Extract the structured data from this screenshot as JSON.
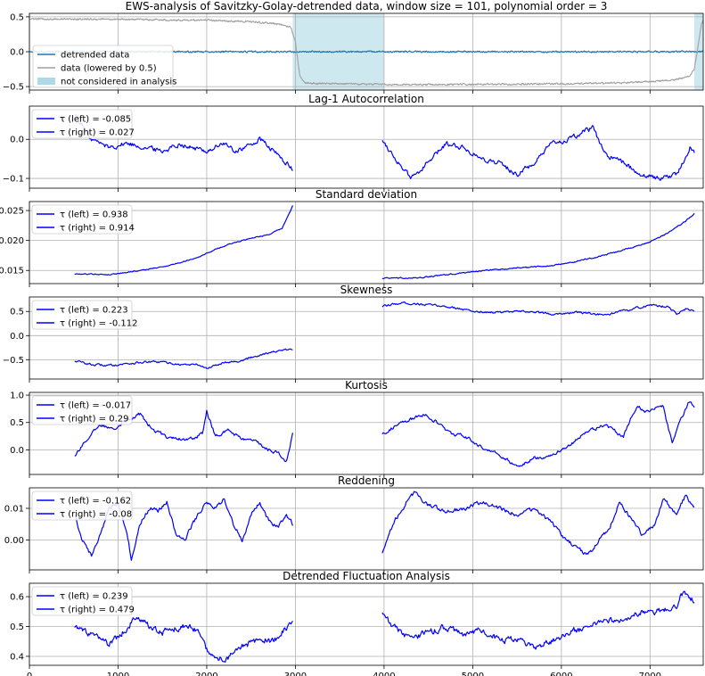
{
  "figure": {
    "title": "EWS-analysis of Savitzky-Golay-detrended data, window size = 101, polynomial order = 3"
  },
  "colors": {
    "detrended": "#1f77b4",
    "data": "#a0a0a0",
    "shade": "#add8e6",
    "indicator": "#0000ff",
    "grid": "#b0b0b0"
  },
  "chart_data": [
    {
      "type": "line",
      "title": "EWS-analysis of Savitzky-Golay-detrended data, window size = 101, polynomial order = 3",
      "xlim": [
        0,
        7600
      ],
      "ylim": [
        -0.55,
        0.55
      ],
      "yticks": [
        -0.5,
        0.0,
        0.5
      ],
      "ytick_labels": [
        "−0.5",
        "0.0",
        "0.5"
      ],
      "grid": true,
      "legend": "center-left",
      "legend_entries": [
        "detrended data",
        "data (lowered by 0.5)",
        "not considered in analysis"
      ],
      "shaded_regions": [
        [
          2970,
          4000
        ],
        [
          7500,
          7600
        ]
      ],
      "series": [
        {
          "name": "detrended data",
          "x": [
            0,
            2970,
            3050,
            7600
          ],
          "y": [
            0.0,
            0.0,
            0.0,
            0.0
          ],
          "noise": 0.02
        },
        {
          "name": "data (lowered by 0.5)",
          "x": [
            0,
            1000,
            2000,
            2500,
            2800,
            2950,
            3000,
            3050,
            3100,
            4000,
            5000,
            6000,
            6500,
            7000,
            7300,
            7450,
            7500,
            7550,
            7580,
            7600
          ],
          "y": [
            0.47,
            0.465,
            0.45,
            0.43,
            0.4,
            0.35,
            0.15,
            -0.35,
            -0.45,
            -0.47,
            -0.47,
            -0.46,
            -0.45,
            -0.43,
            -0.4,
            -0.35,
            -0.25,
            0.15,
            0.4,
            0.45
          ],
          "noise": 0.02
        }
      ]
    },
    {
      "type": "line",
      "title": "Lag-1 Autocorrelation",
      "xlim": [
        0,
        7600
      ],
      "ylim": [
        -0.125,
        0.085
      ],
      "yticks": [
        -0.1,
        0.0
      ],
      "ytick_labels": [
        "−0.1",
        "0.0"
      ],
      "grid": true,
      "legend": "top-left",
      "legend_entries": [
        "τ (left) = -0.085",
        "τ (right) = 0.027"
      ],
      "series": [
        {
          "name": "τ (left) = -0.085",
          "x": [
            510,
            700,
            900,
            1100,
            1300,
            1500,
            1700,
            1800,
            2000,
            2200,
            2300,
            2450,
            2600,
            2750,
            2800,
            2900,
            2970
          ],
          "y": [
            0.065,
            0.0,
            -0.02,
            -0.01,
            -0.02,
            -0.03,
            -0.01,
            -0.02,
            -0.03,
            -0.01,
            -0.03,
            -0.02,
            0.0,
            -0.03,
            -0.04,
            -0.06,
            -0.08
          ],
          "noise": 0.012
        },
        {
          "name": "τ (right) = 0.027",
          "x": [
            3980,
            4100,
            4300,
            4500,
            4700,
            4900,
            5100,
            5300,
            5500,
            5700,
            5900,
            6100,
            6350,
            6500,
            6700,
            6900,
            7100,
            7300,
            7450,
            7500
          ],
          "y": [
            0.0,
            -0.04,
            -0.1,
            -0.06,
            -0.01,
            -0.02,
            -0.05,
            -0.06,
            -0.09,
            -0.06,
            -0.01,
            0.0,
            0.03,
            -0.04,
            -0.06,
            -0.09,
            -0.1,
            -0.09,
            -0.02,
            -0.03
          ],
          "noise": 0.012
        }
      ]
    },
    {
      "type": "line",
      "title": "Standard deviation",
      "xlim": [
        0,
        7600
      ],
      "ylim": [
        0.0128,
        0.0265
      ],
      "yticks": [
        0.015,
        0.02,
        0.025
      ],
      "ytick_labels": [
        "0.015",
        "0.020",
        "0.025"
      ],
      "grid": true,
      "legend": "top-left",
      "legend_entries": [
        "τ (left) = 0.938",
        "τ (right) = 0.914"
      ],
      "series": [
        {
          "name": "τ (left) = 0.938",
          "x": [
            510,
            700,
            900,
            1100,
            1300,
            1500,
            1700,
            1900,
            2100,
            2300,
            2500,
            2700,
            2850,
            2970
          ],
          "y": [
            0.0144,
            0.0144,
            0.0143,
            0.0147,
            0.0151,
            0.0156,
            0.0163,
            0.0172,
            0.0185,
            0.0196,
            0.0204,
            0.021,
            0.022,
            0.0258
          ],
          "noise": 0.00015
        },
        {
          "name": "τ (right) = 0.914",
          "x": [
            3980,
            4200,
            4400,
            4600,
            4800,
            5000,
            5300,
            5600,
            5900,
            6200,
            6500,
            6800,
            7000,
            7200,
            7400,
            7500
          ],
          "y": [
            0.0137,
            0.0137,
            0.0138,
            0.0141,
            0.0144,
            0.0148,
            0.0152,
            0.0155,
            0.0158,
            0.0166,
            0.0176,
            0.0188,
            0.0198,
            0.0212,
            0.0232,
            0.0245
          ],
          "noise": 0.0002
        }
      ]
    },
    {
      "type": "line",
      "title": "Skewness",
      "xlim": [
        0,
        7600
      ],
      "ylim": [
        -0.9,
        0.8
      ],
      "yticks": [
        -0.5,
        0.0,
        0.5
      ],
      "ytick_labels": [
        "−0.5",
        "0.0",
        "0.5"
      ],
      "grid": true,
      "legend": "top-left",
      "legend_entries": [
        "τ (left) = 0.223",
        "τ (right) = -0.112"
      ],
      "series": [
        {
          "name": "τ (left) = 0.223",
          "x": [
            510,
            700,
            900,
            1100,
            1300,
            1500,
            1700,
            1900,
            2000,
            2200,
            2400,
            2500,
            2700,
            2900,
            2970
          ],
          "y": [
            -0.52,
            -0.6,
            -0.62,
            -0.58,
            -0.55,
            -0.55,
            -0.6,
            -0.6,
            -0.68,
            -0.55,
            -0.52,
            -0.45,
            -0.35,
            -0.3,
            -0.28
          ],
          "noise": 0.04
        },
        {
          "name": "τ (right) = -0.112",
          "x": [
            3980,
            4200,
            4400,
            4600,
            4800,
            5000,
            5300,
            5600,
            5900,
            6200,
            6500,
            6800,
            7000,
            7200,
            7300,
            7400,
            7500
          ],
          "y": [
            0.6,
            0.68,
            0.65,
            0.62,
            0.58,
            0.5,
            0.48,
            0.5,
            0.45,
            0.48,
            0.42,
            0.55,
            0.63,
            0.6,
            0.45,
            0.55,
            0.5
          ],
          "noise": 0.04
        }
      ]
    },
    {
      "type": "line",
      "title": "Kurtosis",
      "xlim": [
        0,
        7600
      ],
      "ylim": [
        -0.45,
        1.05
      ],
      "yticks": [
        0.0,
        0.5,
        1.0
      ],
      "ytick_labels": [
        "0.0",
        "0.5",
        "1.0"
      ],
      "grid": true,
      "legend": "top-left",
      "legend_entries": [
        "τ (left) = -0.017",
        "τ (right) = 0.29"
      ],
      "series": [
        {
          "name": "τ (left) = -0.017",
          "x": [
            510,
            650,
            800,
            950,
            1100,
            1250,
            1400,
            1550,
            1700,
            1850,
            1950,
            2000,
            2100,
            2250,
            2400,
            2550,
            2700,
            2800,
            2900,
            2970
          ],
          "y": [
            -0.1,
            0.2,
            0.45,
            0.4,
            0.55,
            0.65,
            0.35,
            0.25,
            0.2,
            0.2,
            0.3,
            0.7,
            0.25,
            0.35,
            0.2,
            0.15,
            0.0,
            -0.05,
            -0.2,
            0.3
          ],
          "noise": 0.06
        },
        {
          "name": "τ (right) = 0.29",
          "x": [
            3980,
            4150,
            4300,
            4450,
            4600,
            4750,
            4900,
            5100,
            5300,
            5500,
            5700,
            5900,
            6100,
            6300,
            6500,
            6700,
            6850,
            6950,
            7050,
            7150,
            7250,
            7350,
            7450,
            7500
          ],
          "y": [
            0.3,
            0.45,
            0.55,
            0.65,
            0.5,
            0.3,
            0.25,
            0.05,
            -0.1,
            -0.3,
            -0.15,
            -0.1,
            0.1,
            0.35,
            0.45,
            0.25,
            0.8,
            0.7,
            0.75,
            0.8,
            0.1,
            0.55,
            0.9,
            0.8
          ],
          "noise": 0.06
        }
      ]
    },
    {
      "type": "line",
      "title": "Reddening",
      "xlim": [
        0,
        7600
      ],
      "ylim": [
        -0.0095,
        0.0165
      ],
      "yticks": [
        0.0,
        0.01
      ],
      "ytick_labels": [
        "0.00",
        "0.01"
      ],
      "grid": true,
      "legend": "top-left",
      "legend_entries": [
        "τ (left) = -0.162",
        "τ (right) = -0.08"
      ],
      "series": [
        {
          "name": "τ (left) = -0.162",
          "x": [
            510,
            600,
            700,
            800,
            900,
            1000,
            1100,
            1150,
            1250,
            1350,
            1450,
            1550,
            1650,
            1750,
            1900,
            2000,
            2100,
            2200,
            2300,
            2400,
            2500,
            2600,
            2700,
            2800,
            2900,
            2970
          ],
          "y": [
            0.008,
            0.0,
            -0.005,
            0.002,
            0.01,
            0.012,
            0.002,
            -0.006,
            0.005,
            0.01,
            0.009,
            0.012,
            0.002,
            0.0,
            0.008,
            0.012,
            0.01,
            0.013,
            0.005,
            0.0,
            0.008,
            0.012,
            0.006,
            0.004,
            0.008,
            0.005
          ],
          "noise": 0.0012
        },
        {
          "name": "τ (right) = -0.08",
          "x": [
            3980,
            4100,
            4250,
            4350,
            4500,
            4700,
            4900,
            5100,
            5300,
            5500,
            5700,
            5900,
            6050,
            6200,
            6300,
            6450,
            6550,
            6650,
            6750,
            6900,
            7050,
            7150,
            7300,
            7400,
            7500
          ],
          "y": [
            -0.004,
            0.005,
            0.012,
            0.015,
            0.011,
            0.009,
            0.01,
            0.012,
            0.01,
            0.008,
            0.01,
            0.005,
            0.0,
            -0.003,
            -0.005,
            0.001,
            0.004,
            0.012,
            0.008,
            0.002,
            0.005,
            0.013,
            0.008,
            0.014,
            0.01
          ],
          "noise": 0.0012
        }
      ]
    },
    {
      "type": "line",
      "title": "Detrended Fluctuation Analysis",
      "xlim": [
        0,
        7600
      ],
      "ylim": [
        0.37,
        0.645
      ],
      "yticks": [
        0.4,
        0.5,
        0.6
      ],
      "ytick_labels": [
        "0.4",
        "0.5",
        "0.6"
      ],
      "grid": true,
      "legend": "top-left",
      "legend_entries": [
        "τ (left) = 0.239",
        "τ (right) = 0.479"
      ],
      "series": [
        {
          "name": "τ (left) = 0.239",
          "x": [
            510,
            700,
            900,
            1050,
            1200,
            1350,
            1500,
            1700,
            1900,
            2000,
            2100,
            2200,
            2300,
            2450,
            2600,
            2750,
            2850,
            2970
          ],
          "y": [
            0.5,
            0.47,
            0.44,
            0.48,
            0.53,
            0.5,
            0.48,
            0.5,
            0.49,
            0.42,
            0.4,
            0.39,
            0.41,
            0.44,
            0.46,
            0.45,
            0.48,
            0.52
          ],
          "noise": 0.02
        },
        {
          "name": "τ (right) = 0.479",
          "x": [
            3980,
            4100,
            4300,
            4500,
            4700,
            4900,
            5100,
            5300,
            5500,
            5700,
            5900,
            6100,
            6300,
            6500,
            6700,
            6900,
            7100,
            7300,
            7350,
            7450,
            7500
          ],
          "y": [
            0.55,
            0.5,
            0.46,
            0.48,
            0.5,
            0.47,
            0.49,
            0.45,
            0.46,
            0.43,
            0.45,
            0.48,
            0.5,
            0.52,
            0.52,
            0.55,
            0.55,
            0.57,
            0.62,
            0.6,
            0.58
          ],
          "noise": 0.02
        }
      ]
    }
  ],
  "x_axis": {
    "ticks": [
      0,
      1000,
      2000,
      3000,
      4000,
      5000,
      6000,
      7000
    ],
    "tick_labels": [
      "0",
      "1000",
      "2000",
      "3000",
      "4000",
      "5000",
      "6000",
      "7000"
    ]
  }
}
